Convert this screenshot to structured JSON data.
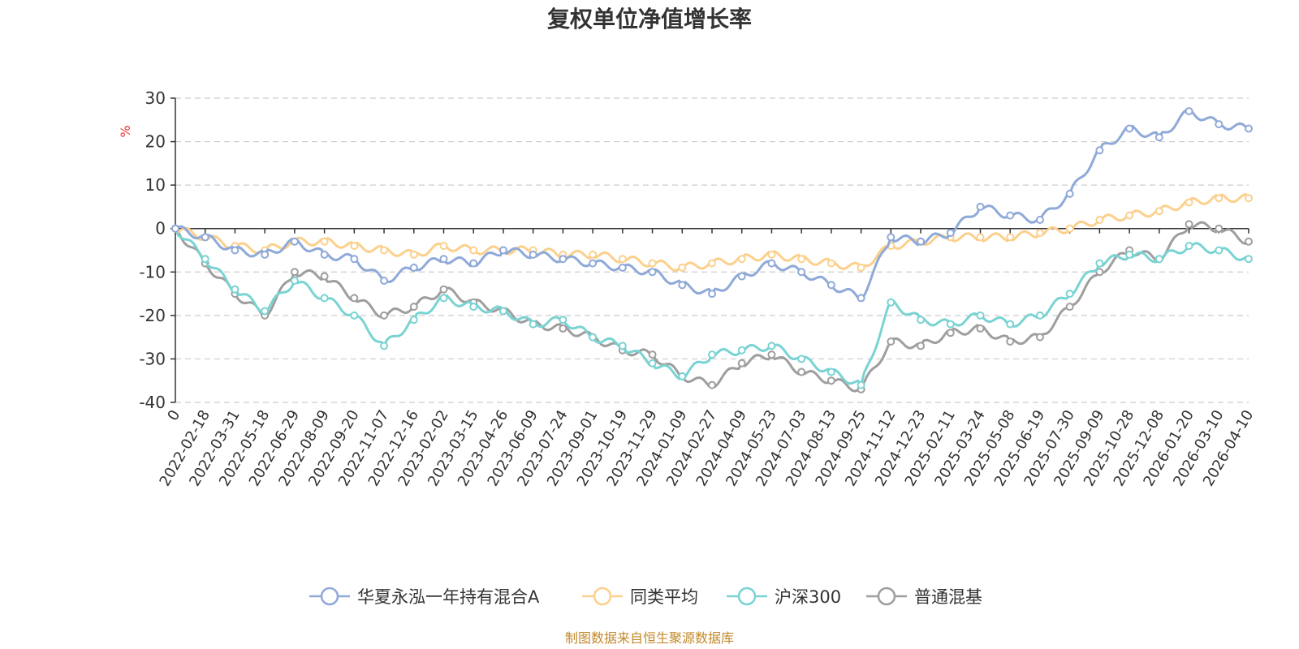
{
  "chart_data": {
    "type": "line",
    "title": "复权单位净值增长率",
    "ylabel": "%",
    "ylim": [
      -40,
      30
    ],
    "yticks": [
      -40,
      -30,
      -20,
      -10,
      0,
      10,
      20,
      30
    ],
    "categories": [
      "0",
      "2022-02-18",
      "2022-03-31",
      "2022-05-18",
      "2022-06-29",
      "2022-08-09",
      "2022-09-20",
      "2022-11-07",
      "2022-12-16",
      "2023-02-02",
      "2023-03-15",
      "2023-04-26",
      "2023-06-09",
      "2023-07-24",
      "2023-09-01",
      "2023-10-19",
      "2023-11-29",
      "2024-01-09",
      "2024-02-27",
      "2024-04-09",
      "2024-05-23",
      "2024-07-03",
      "2024-08-13",
      "2024-09-25",
      "2024-11-12",
      "2024-12-23",
      "2025-02-11",
      "2025-03-24",
      "2025-05-08",
      "2025-06-19",
      "2025-07-30",
      "2025-09-09",
      "2025-10-28",
      "2025-12-08",
      "2026-01-20",
      "2026-03-10",
      "2026-04-10"
    ],
    "series": [
      {
        "name": "华夏永泓一年持有混合A",
        "color": "#8fa9d8",
        "values": [
          0,
          -2,
          -5,
          -6,
          -3,
          -6,
          -7,
          -12,
          -9,
          -7,
          -8,
          -5,
          -6,
          -7,
          -8,
          -9,
          -10,
          -13,
          -15,
          -11,
          -8,
          -10,
          -13,
          -16,
          -2,
          -3,
          -1,
          5,
          3,
          2,
          8,
          18,
          23,
          21,
          27,
          24,
          23
        ]
      },
      {
        "name": "同类平均",
        "color": "#fbd08c",
        "values": [
          0,
          -2,
          -4,
          -5,
          -3,
          -3,
          -4,
          -5,
          -6,
          -4,
          -5,
          -5,
          -5,
          -6,
          -6,
          -7,
          -8,
          -9,
          -8,
          -7,
          -6,
          -7,
          -8,
          -9,
          -4,
          -3,
          -2,
          -2,
          -2,
          -1,
          0,
          2,
          3,
          4,
          6,
          7,
          7
        ]
      },
      {
        "name": "沪深300",
        "color": "#7ad3d3",
        "values": [
          0,
          -7,
          -14,
          -19,
          -12,
          -16,
          -20,
          -27,
          -21,
          -16,
          -18,
          -19,
          -22,
          -21,
          -25,
          -27,
          -31,
          -34,
          -29,
          -28,
          -27,
          -30,
          -33,
          -36,
          -17,
          -21,
          -22,
          -20,
          -22,
          -20,
          -15,
          -8,
          -6,
          -7,
          -4,
          -5,
          -7
        ]
      },
      {
        "name": "普通混基",
        "color": "#9e9e9e",
        "values": [
          0,
          -8,
          -15,
          -20,
          -10,
          -11,
          -16,
          -20,
          -18,
          -14,
          -17,
          -19,
          -22,
          -23,
          -25,
          -28,
          -29,
          -34,
          -36,
          -31,
          -29,
          -33,
          -35,
          -37,
          -26,
          -27,
          -24,
          -23,
          -26,
          -25,
          -18,
          -10,
          -5,
          -7,
          1,
          0,
          -3
        ]
      }
    ],
    "legend_position": "bottom",
    "source": "制图数据来自恒生聚源数据库"
  }
}
